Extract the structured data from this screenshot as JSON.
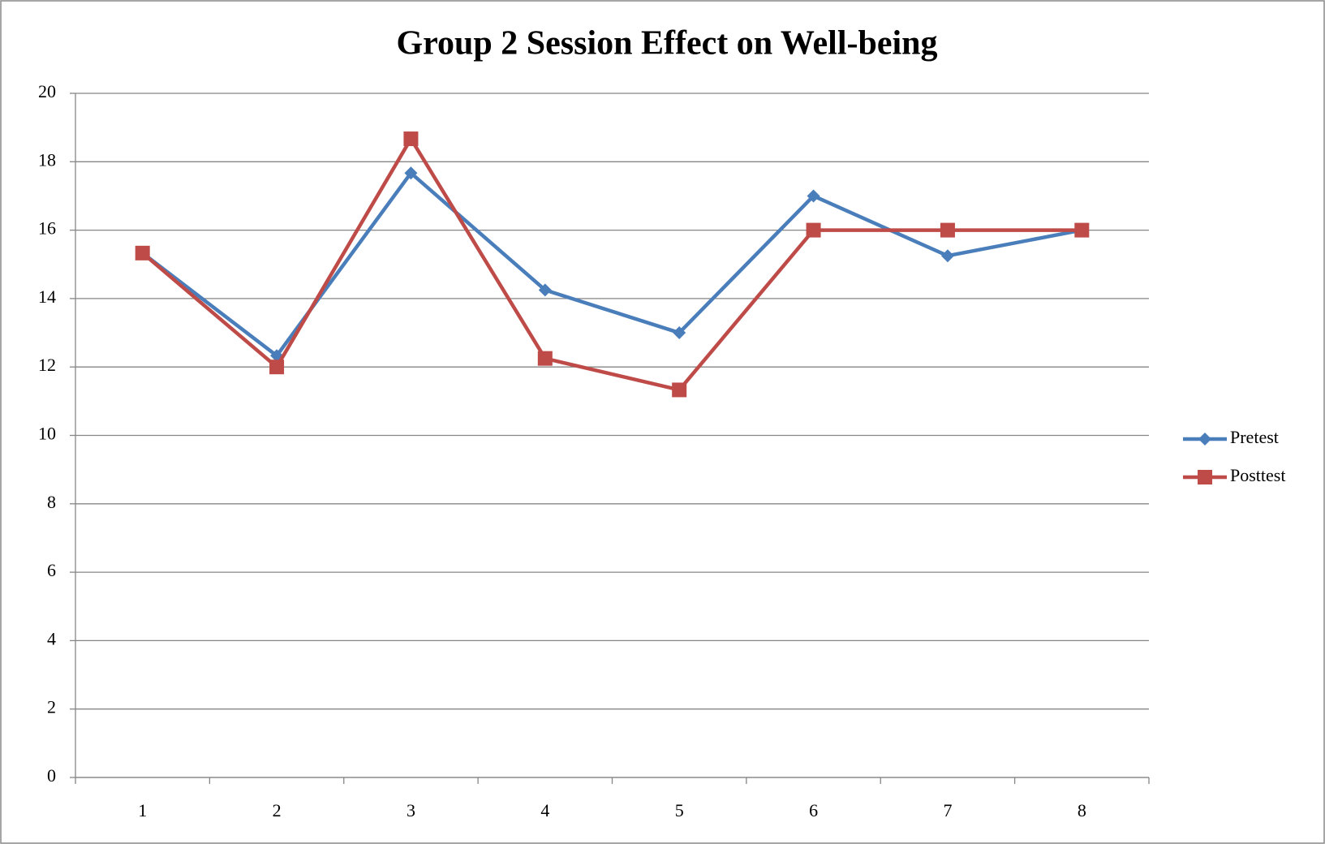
{
  "chart_data": {
    "type": "line",
    "title": "Group 2 Session Effect on Well-being",
    "categories": [
      "1",
      "2",
      "3",
      "4",
      "5",
      "6",
      "7",
      "8"
    ],
    "series": [
      {
        "name": "Pretest",
        "color": "#4a7ebb",
        "marker": "diamond",
        "values": [
          15.33,
          12.33,
          17.67,
          14.25,
          13,
          17,
          15.25,
          16
        ]
      },
      {
        "name": "Posttest",
        "color": "#be4b48",
        "marker": "square",
        "values": [
          15.33,
          12,
          18.67,
          12.25,
          11.33,
          16,
          16,
          16
        ]
      }
    ],
    "ylim": [
      0,
      20
    ],
    "yticks": [
      0,
      2,
      4,
      6,
      8,
      10,
      12,
      14,
      16,
      18,
      20
    ],
    "grid": true,
    "legend": "right"
  }
}
